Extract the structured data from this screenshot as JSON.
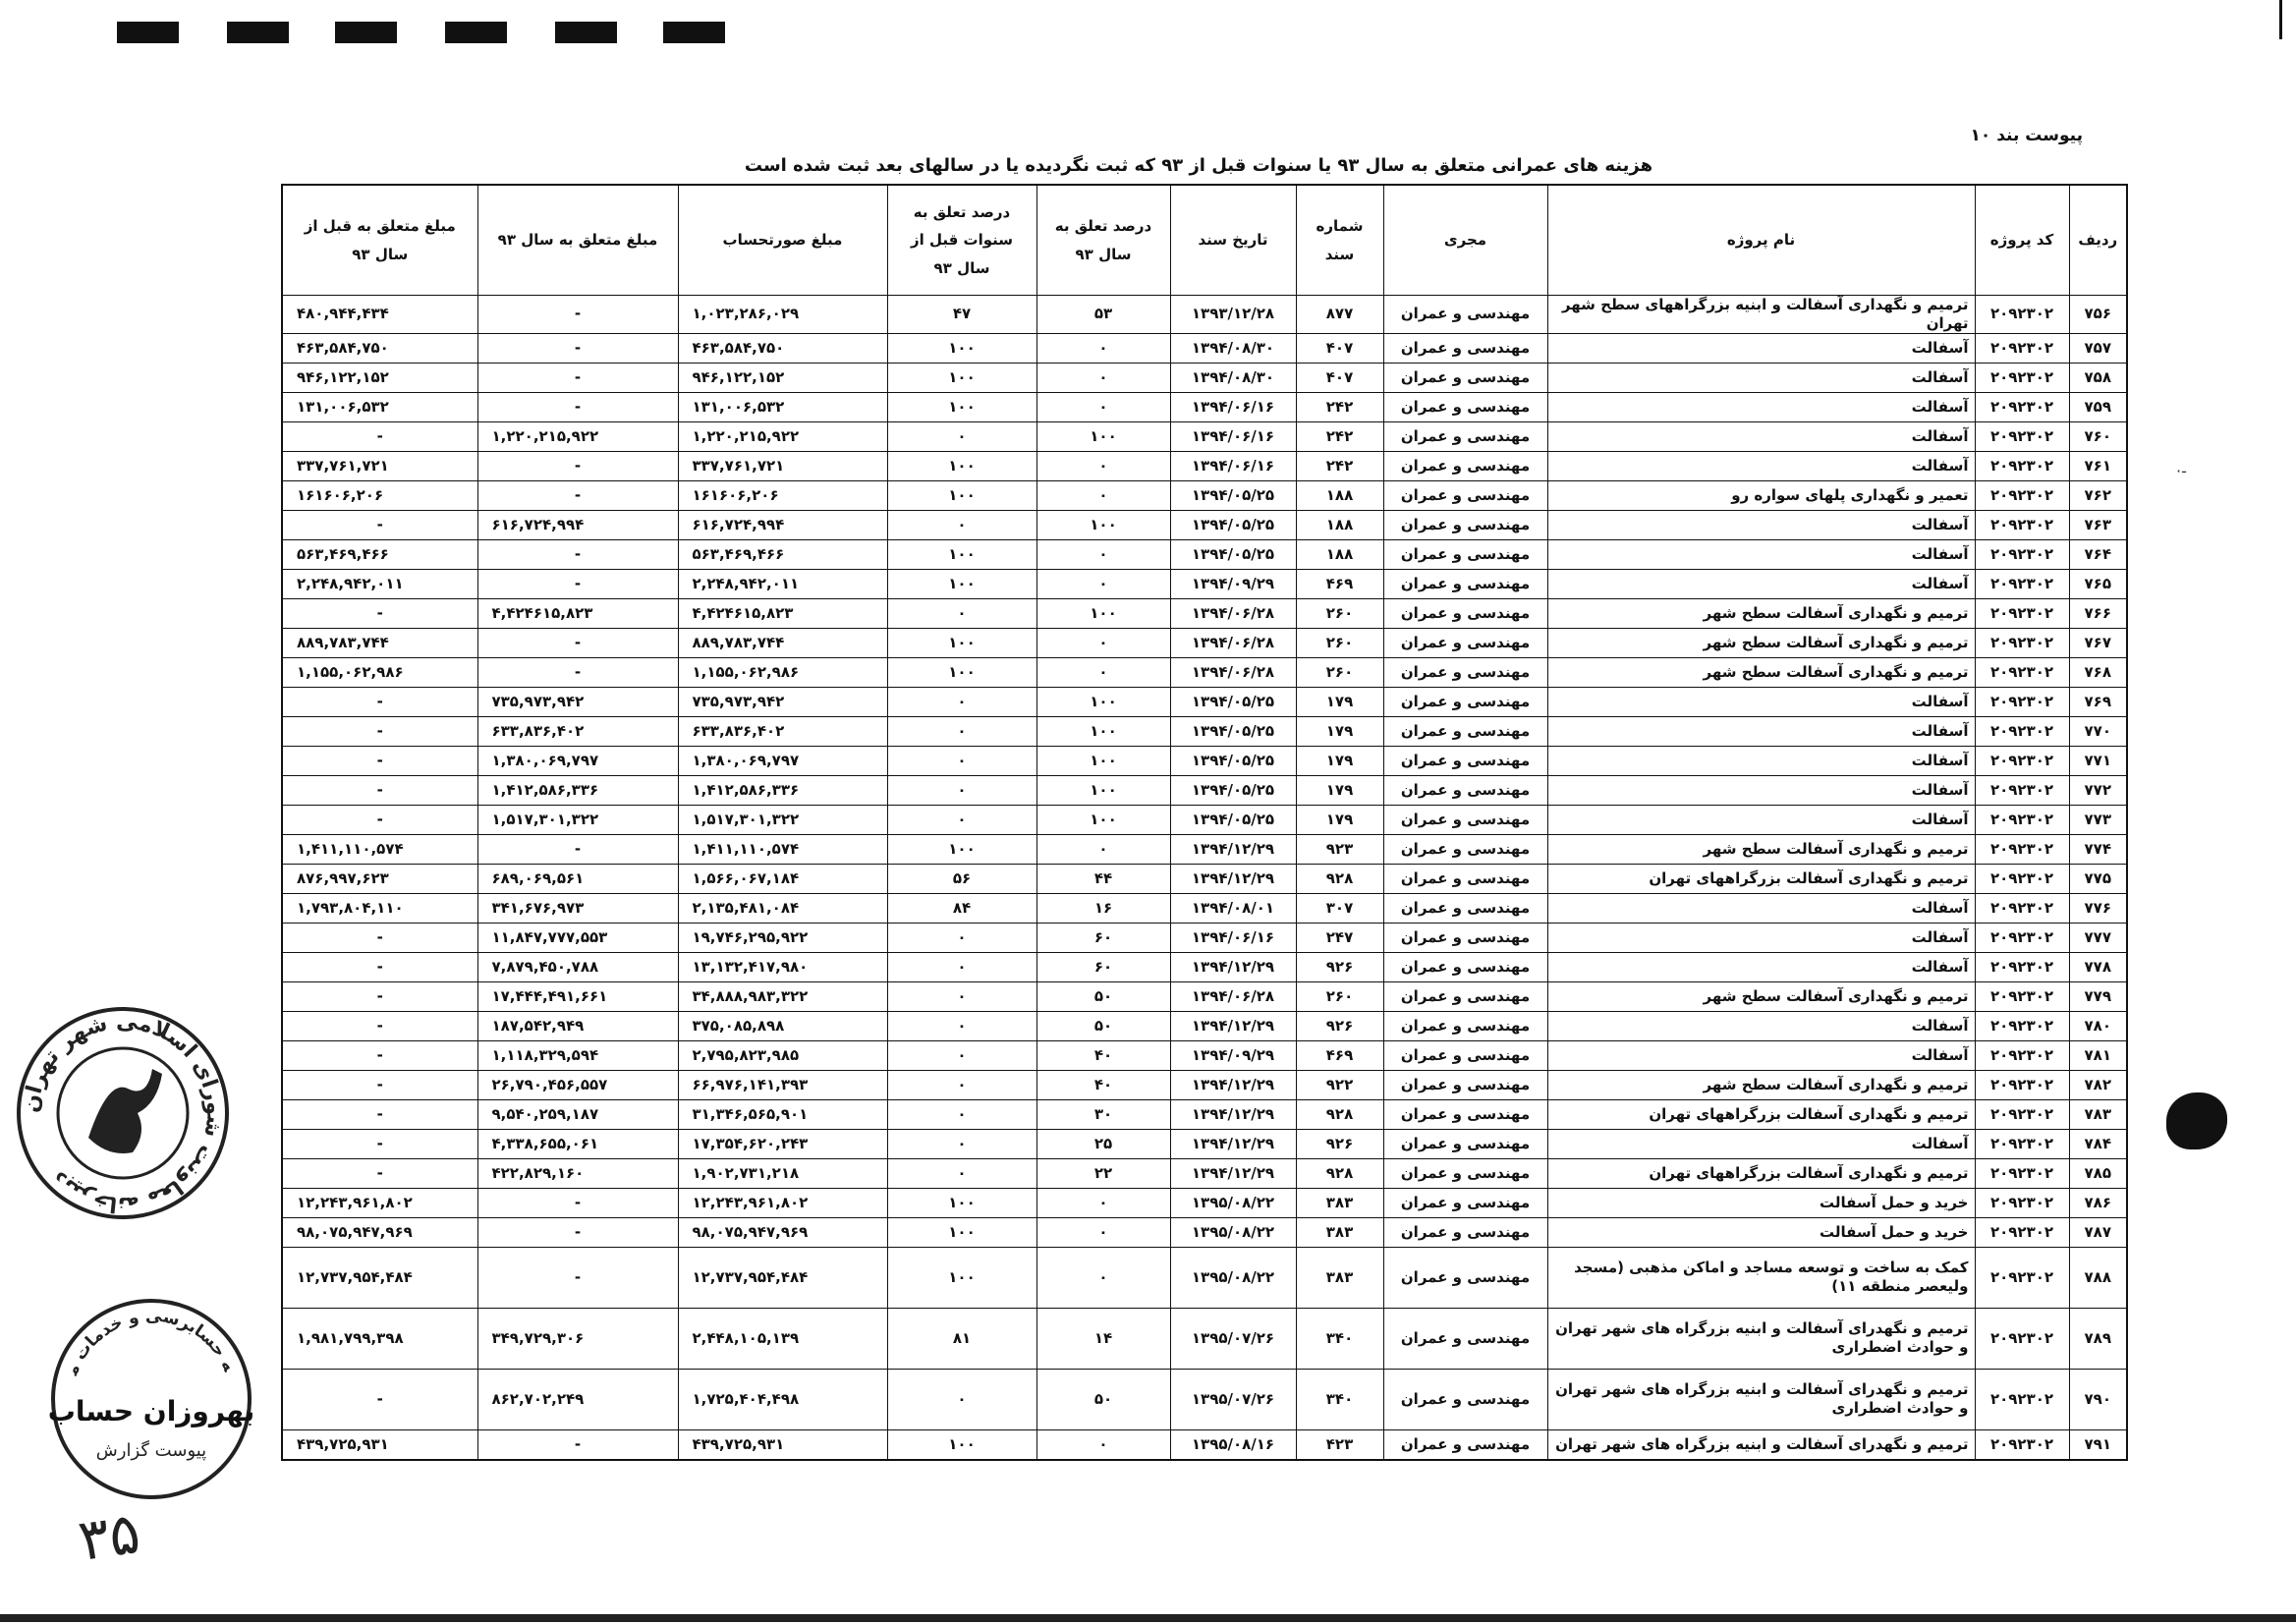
{
  "header": {
    "appendix_label": "پیوست بند ۱۰",
    "title": "هزینه های عمرانی متعلق به سال ۹۳ یا سنوات قبل از ۹۳ که  ثبت نگردیده یا در سالهای بعد ثبت شده است"
  },
  "table": {
    "columns": [
      "ردیف",
      "کد پروژه",
      "نام پروژه",
      "مجری",
      "شماره سند",
      "تاریخ سند",
      "درصد تعلق به  سال ۹۳",
      "درصد تعلق به سنوات قبل از سال ۹۳",
      "مبلغ صورتحساب",
      "مبلغ متعلق به سال ۹۳",
      "مبلغ متعلق به قبل از سال ۹۳"
    ],
    "rows": [
      [
        "۷۵۶",
        "۲۰۹۲۳۰۲",
        "ترمیم و نگهداری آسفالت و ابنیه بزرگراههای سطح شهر تهران",
        "مهندسی و عمران",
        "۸۷۷",
        "۱۳۹۳/۱۲/۲۸",
        "۵۳",
        "۴۷",
        "۱,۰۲۳,۲۸۶,۰۲۹",
        "-",
        "۴۸۰,۹۴۴,۴۳۴"
      ],
      [
        "۷۵۷",
        "۲۰۹۲۳۰۲",
        "آسفالت",
        "مهندسی و عمران",
        "۴۰۷",
        "۱۳۹۴/۰۸/۳۰",
        "۰",
        "۱۰۰",
        "۴۶۳,۵۸۴,۷۵۰",
        "-",
        "۴۶۳,۵۸۴,۷۵۰"
      ],
      [
        "۷۵۸",
        "۲۰۹۲۳۰۲",
        "آسفالت",
        "مهندسی و عمران",
        "۴۰۷",
        "۱۳۹۴/۰۸/۳۰",
        "۰",
        "۱۰۰",
        "۹۴۶,۱۲۲,۱۵۲",
        "-",
        "۹۴۶,۱۲۲,۱۵۲"
      ],
      [
        "۷۵۹",
        "۲۰۹۲۳۰۲",
        "آسفالت",
        "مهندسی و عمران",
        "۲۴۲",
        "۱۳۹۴/۰۶/۱۶",
        "۰",
        "۱۰۰",
        "۱۳۱,۰۰۶,۵۳۲",
        "-",
        "۱۳۱,۰۰۶,۵۳۲"
      ],
      [
        "۷۶۰",
        "۲۰۹۲۳۰۲",
        "آسفالت",
        "مهندسی و عمران",
        "۲۴۲",
        "۱۳۹۴/۰۶/۱۶",
        "۱۰۰",
        "۰",
        "۱,۲۲۰,۲۱۵,۹۲۲",
        "۱,۲۲۰,۲۱۵,۹۲۲",
        "-"
      ],
      [
        "۷۶۱",
        "۲۰۹۲۳۰۲",
        "آسفالت",
        "مهندسی و عمران",
        "۲۴۲",
        "۱۳۹۴/۰۶/۱۶",
        "۰",
        "۱۰۰",
        "۳۳۷,۷۶۱,۷۲۱",
        "-",
        "۳۳۷,۷۶۱,۷۲۱"
      ],
      [
        "۷۶۲",
        "۲۰۹۲۳۰۲",
        "تعمیر و نگهداری پلهای سواره رو",
        "مهندسی و عمران",
        "۱۸۸",
        "۱۳۹۴/۰۵/۲۵",
        "۰",
        "۱۰۰",
        "۱۶۱۶۰۶,۲۰۶",
        "-",
        "۱۶۱۶۰۶,۲۰۶"
      ],
      [
        "۷۶۳",
        "۲۰۹۲۳۰۲",
        "آسفالت",
        "مهندسی و عمران",
        "۱۸۸",
        "۱۳۹۴/۰۵/۲۵",
        "۱۰۰",
        "۰",
        "۶۱۶,۷۲۴,۹۹۴",
        "۶۱۶,۷۲۴,۹۹۴",
        "-"
      ],
      [
        "۷۶۴",
        "۲۰۹۲۳۰۲",
        "آسفالت",
        "مهندسی و عمران",
        "۱۸۸",
        "۱۳۹۴/۰۵/۲۵",
        "۰",
        "۱۰۰",
        "۵۶۳,۴۶۹,۴۶۶",
        "-",
        "۵۶۳,۴۶۹,۴۶۶"
      ],
      [
        "۷۶۵",
        "۲۰۹۲۳۰۲",
        "آسفالت",
        "مهندسی و عمران",
        "۴۶۹",
        "۱۳۹۴/۰۹/۲۹",
        "۰",
        "۱۰۰",
        "۲,۲۴۸,۹۴۲,۰۱۱",
        "-",
        "۲,۲۴۸,۹۴۲,۰۱۱"
      ],
      [
        "۷۶۶",
        "۲۰۹۲۳۰۲",
        "ترمیم و نگهداری آسفالت سطح شهر",
        "مهندسی و عمران",
        "۲۶۰",
        "۱۳۹۴/۰۶/۲۸",
        "۱۰۰",
        "۰",
        "۴,۴۲۴۶۱۵,۸۲۳",
        "۴,۴۲۴۶۱۵,۸۲۳",
        "-"
      ],
      [
        "۷۶۷",
        "۲۰۹۲۳۰۲",
        "ترمیم و نگهداری آسفالت سطح شهر",
        "مهندسی و عمران",
        "۲۶۰",
        "۱۳۹۴/۰۶/۲۸",
        "۰",
        "۱۰۰",
        "۸۸۹,۷۸۳,۷۴۴",
        "-",
        "۸۸۹,۷۸۳,۷۴۴"
      ],
      [
        "۷۶۸",
        "۲۰۹۲۳۰۲",
        "ترمیم و نگهداری آسفالت سطح شهر",
        "مهندسی و عمران",
        "۲۶۰",
        "۱۳۹۴/۰۶/۲۸",
        "۰",
        "۱۰۰",
        "۱,۱۵۵,۰۶۲,۹۸۶",
        "-",
        "۱,۱۵۵,۰۶۲,۹۸۶"
      ],
      [
        "۷۶۹",
        "۲۰۹۲۳۰۲",
        "آسفالت",
        "مهندسی و عمران",
        "۱۷۹",
        "۱۳۹۴/۰۵/۲۵",
        "۱۰۰",
        "۰",
        "۷۳۵,۹۷۳,۹۴۲",
        "۷۳۵,۹۷۳,۹۴۲",
        "-"
      ],
      [
        "۷۷۰",
        "۲۰۹۲۳۰۲",
        "آسفالت",
        "مهندسی و عمران",
        "۱۷۹",
        "۱۳۹۴/۰۵/۲۵",
        "۱۰۰",
        "۰",
        "۶۳۳,۸۳۶,۴۰۲",
        "۶۳۳,۸۳۶,۴۰۲",
        "-"
      ],
      [
        "۷۷۱",
        "۲۰۹۲۳۰۲",
        "آسفالت",
        "مهندسی و عمران",
        "۱۷۹",
        "۱۳۹۴/۰۵/۲۵",
        "۱۰۰",
        "۰",
        "۱,۳۸۰,۰۶۹,۷۹۷",
        "۱,۳۸۰,۰۶۹,۷۹۷",
        "-"
      ],
      [
        "۷۷۲",
        "۲۰۹۲۳۰۲",
        "آسفالت",
        "مهندسی و عمران",
        "۱۷۹",
        "۱۳۹۴/۰۵/۲۵",
        "۱۰۰",
        "۰",
        "۱,۴۱۲,۵۸۶,۳۳۶",
        "۱,۴۱۲,۵۸۶,۳۳۶",
        "-"
      ],
      [
        "۷۷۳",
        "۲۰۹۲۳۰۲",
        "آسفالت",
        "مهندسی و عمران",
        "۱۷۹",
        "۱۳۹۴/۰۵/۲۵",
        "۱۰۰",
        "۰",
        "۱,۵۱۷,۳۰۱,۳۲۲",
        "۱,۵۱۷,۳۰۱,۳۲۲",
        "-"
      ],
      [
        "۷۷۴",
        "۲۰۹۲۳۰۲",
        "ترمیم و نگهداری آسفالت سطح شهر",
        "مهندسی و عمران",
        "۹۲۳",
        "۱۳۹۴/۱۲/۲۹",
        "۰",
        "۱۰۰",
        "۱,۴۱۱,۱۱۰,۵۷۴",
        "-",
        "۱,۴۱۱,۱۱۰,۵۷۴"
      ],
      [
        "۷۷۵",
        "۲۰۹۲۳۰۲",
        "ترمیم و نگهداری آسفالت بزرگراههای تهران",
        "مهندسی و عمران",
        "۹۲۸",
        "۱۳۹۴/۱۲/۲۹",
        "۴۴",
        "۵۶",
        "۱,۵۶۶,۰۶۷,۱۸۴",
        "۶۸۹,۰۶۹,۵۶۱",
        "۸۷۶,۹۹۷,۶۲۳"
      ],
      [
        "۷۷۶",
        "۲۰۹۲۳۰۲",
        "آسفالت",
        "مهندسی و عمران",
        "۳۰۷",
        "۱۳۹۴/۰۸/۰۱",
        "۱۶",
        "۸۴",
        "۲,۱۳۵,۴۸۱,۰۸۴",
        "۳۴۱,۶۷۶,۹۷۳",
        "۱,۷۹۳,۸۰۴,۱۱۰"
      ],
      [
        "۷۷۷",
        "۲۰۹۲۳۰۲",
        "آسفالت",
        "مهندسی و عمران",
        "۲۴۷",
        "۱۳۹۴/۰۶/۱۶",
        "۶۰",
        "۰",
        "۱۹,۷۴۶,۲۹۵,۹۲۲",
        "۱۱,۸۴۷,۷۷۷,۵۵۳",
        "-"
      ],
      [
        "۷۷۸",
        "۲۰۹۲۳۰۲",
        "آسفالت",
        "مهندسی و عمران",
        "۹۲۶",
        "۱۳۹۴/۱۲/۲۹",
        "۶۰",
        "۰",
        "۱۳,۱۳۲,۴۱۷,۹۸۰",
        "۷,۸۷۹,۴۵۰,۷۸۸",
        "-"
      ],
      [
        "۷۷۹",
        "۲۰۹۲۳۰۲",
        "ترمیم و نگهداری آسفالت سطح شهر",
        "مهندسی و عمران",
        "۲۶۰",
        "۱۳۹۴/۰۶/۲۸",
        "۵۰",
        "۰",
        "۳۴,۸۸۸,۹۸۳,۳۲۲",
        "۱۷,۴۴۴,۴۹۱,۶۶۱",
        "-"
      ],
      [
        "۷۸۰",
        "۲۰۹۲۳۰۲",
        "آسفالت",
        "مهندسی و عمران",
        "۹۲۶",
        "۱۳۹۴/۱۲/۲۹",
        "۵۰",
        "۰",
        "۳۷۵,۰۸۵,۸۹۸",
        "۱۸۷,۵۴۲,۹۴۹",
        "-"
      ],
      [
        "۷۸۱",
        "۲۰۹۲۳۰۲",
        "آسفالت",
        "مهندسی و عمران",
        "۴۶۹",
        "۱۳۹۴/۰۹/۲۹",
        "۴۰",
        "۰",
        "۲,۷۹۵,۸۲۳,۹۸۵",
        "۱,۱۱۸,۳۲۹,۵۹۴",
        "-"
      ],
      [
        "۷۸۲",
        "۲۰۹۲۳۰۲",
        "ترمیم و نگهداری آسفالت سطح شهر",
        "مهندسی و عمران",
        "۹۲۲",
        "۱۳۹۴/۱۲/۲۹",
        "۴۰",
        "۰",
        "۶۶,۹۷۶,۱۴۱,۳۹۳",
        "۲۶,۷۹۰,۴۵۶,۵۵۷",
        "-"
      ],
      [
        "۷۸۳",
        "۲۰۹۲۳۰۲",
        "ترمیم و نگهداری آسفالت بزرگراههای تهران",
        "مهندسی و عمران",
        "۹۲۸",
        "۱۳۹۴/۱۲/۲۹",
        "۳۰",
        "۰",
        "۳۱,۳۴۶,۵۶۵,۹۰۱",
        "۹,۵۴۰,۲۵۹,۱۸۷",
        "-"
      ],
      [
        "۷۸۴",
        "۲۰۹۲۳۰۲",
        "آسفالت",
        "مهندسی و عمران",
        "۹۲۶",
        "۱۳۹۴/۱۲/۲۹",
        "۲۵",
        "۰",
        "۱۷,۳۵۴,۶۲۰,۲۴۳",
        "۴,۳۳۸,۶۵۵,۰۶۱",
        "-"
      ],
      [
        "۷۸۵",
        "۲۰۹۲۳۰۲",
        "ترمیم و نگهداری آسفالت بزرگراههای تهران",
        "مهندسی و عمران",
        "۹۲۸",
        "۱۳۹۴/۱۲/۲۹",
        "۲۲",
        "۰",
        "۱,۹۰۲,۷۳۱,۲۱۸",
        "۴۲۲,۸۲۹,۱۶۰",
        "-"
      ],
      [
        "۷۸۶",
        "۲۰۹۲۳۰۲",
        "خرید و حمل آسفالت",
        "مهندسی و عمران",
        "۳۸۳",
        "۱۳۹۵/۰۸/۲۲",
        "۰",
        "۱۰۰",
        "۱۲,۲۴۳,۹۶۱,۸۰۲",
        "-",
        "۱۲,۲۴۳,۹۶۱,۸۰۲"
      ],
      [
        "۷۸۷",
        "۲۰۹۲۳۰۲",
        "خرید و حمل آسفالت",
        "مهندسی و عمران",
        "۳۸۳",
        "۱۳۹۵/۰۸/۲۲",
        "۰",
        "۱۰۰",
        "۹۸,۰۷۵,۹۴۷,۹۶۹",
        "-",
        "۹۸,۰۷۵,۹۴۷,۹۶۹"
      ],
      [
        "۷۸۸",
        "۲۰۹۲۳۰۲",
        "کمک به ساخت و توسعه مساجد و اماکن مذهبی (مسجد ولیعصر منطقه ۱۱)",
        "مهندسی و عمران",
        "۳۸۳",
        "۱۳۹۵/۰۸/۲۲",
        "۰",
        "۱۰۰",
        "۱۲,۷۳۷,۹۵۴,۴۸۴",
        "-",
        "۱۲,۷۳۷,۹۵۴,۴۸۴"
      ],
      [
        "۷۸۹",
        "۲۰۹۲۳۰۲",
        "ترمیم و نگهدرای آسفالت و ابنیه بزرگراه های شهر تهران و حوادث اضطراری",
        "مهندسی و عمران",
        "۳۴۰",
        "۱۳۹۵/۰۷/۲۶",
        "۱۴",
        "۸۱",
        "۲,۴۴۸,۱۰۵,۱۳۹",
        "۳۴۹,۷۲۹,۳۰۶",
        "۱,۹۸۱,۷۹۹,۳۹۸"
      ],
      [
        "۷۹۰",
        "۲۰۹۲۳۰۲",
        "ترمیم و نگهدرای آسفالت و ابنیه بزرگراه های شهر تهران و حوادث اضطراری",
        "مهندسی و عمران",
        "۳۴۰",
        "۱۳۹۵/۰۷/۲۶",
        "۵۰",
        "۰",
        "۱,۷۲۵,۴۰۴,۴۹۸",
        "۸۶۲,۷۰۲,۲۴۹",
        "-"
      ],
      [
        "۷۹۱",
        "۲۰۹۲۳۰۲",
        "ترمیم و نگهدرای آسفالت و ابنیه بزرگراه های شهر تهران",
        "مهندسی و عمران",
        "۴۲۳",
        "۱۳۹۵/۰۸/۱۶",
        "۰",
        "۱۰۰",
        "۴۳۹,۷۲۵,۹۳۱",
        "-",
        "۴۳۹,۷۲۵,۹۳۱"
      ]
    ]
  },
  "stamps": {
    "council_stamp_text": "دبیرخانه معاونت شورای اسلامی شهر تهران",
    "audit_stamp_ring": "موسسه حسابرسی و خدمات مدیریت",
    "audit_stamp_name": "بهروزان حساب",
    "audit_stamp_sub": "پیوست گزارش",
    "handwritten_page": "۳۵"
  },
  "colors": {
    "ink": "#111111",
    "paper": "#ffffff"
  }
}
